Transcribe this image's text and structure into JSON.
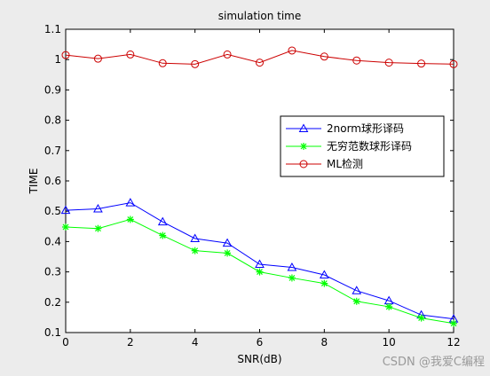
{
  "chart_data": {
    "type": "line",
    "title": "simulation time",
    "xlabel": "SNR(dB)",
    "ylabel": "TIME",
    "xlim": [
      0,
      12
    ],
    "ylim": [
      0.1,
      1.1
    ],
    "xticks": [
      0,
      2,
      4,
      6,
      8,
      10,
      12
    ],
    "yticks": [
      0.1,
      0.2,
      0.3,
      0.4,
      0.5,
      0.6,
      0.7,
      0.8,
      0.9,
      1,
      1.1
    ],
    "grid": false,
    "legend_position": "right",
    "x": [
      0,
      1,
      2,
      3,
      4,
      5,
      6,
      7,
      8,
      9,
      10,
      11,
      12
    ],
    "series": [
      {
        "name": "2norm球形译码",
        "color": "#0000ff",
        "marker": "triangle",
        "values": [
          0.503,
          0.508,
          0.528,
          0.465,
          0.41,
          0.395,
          0.325,
          0.315,
          0.29,
          0.238,
          0.205,
          0.158,
          0.145
        ]
      },
      {
        "name": "无穷范数球形译码",
        "color": "#00ff00",
        "marker": "asterisk",
        "values": [
          0.448,
          0.443,
          0.473,
          0.42,
          0.37,
          0.362,
          0.3,
          0.28,
          0.262,
          0.203,
          0.185,
          0.148,
          0.13
        ]
      },
      {
        "name": "ML检测",
        "color": "#cc0000",
        "marker": "circle",
        "values": [
          1.015,
          1.003,
          1.017,
          0.988,
          0.985,
          1.017,
          0.99,
          1.03,
          1.01,
          0.997,
          0.99,
          0.987,
          0.985
        ]
      }
    ]
  },
  "watermark": "CSDN @我爱C编程"
}
